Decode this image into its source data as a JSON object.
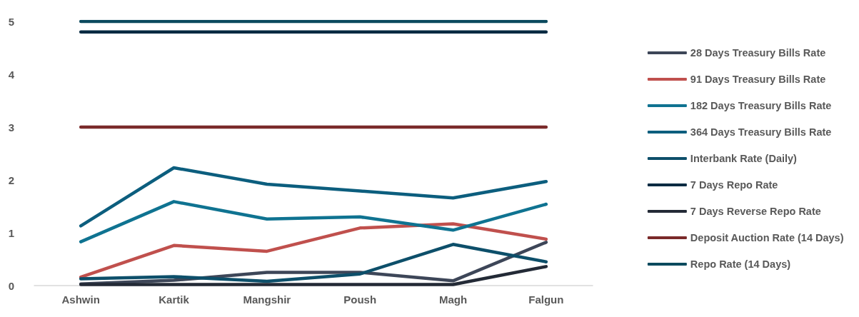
{
  "chart_data": {
    "type": "line",
    "categories": [
      "Ashwin",
      "Kartik",
      "Mangshir",
      "Poush",
      "Magh",
      "Falgun"
    ],
    "ylim": [
      0,
      5
    ],
    "yticks": [
      0,
      1,
      2,
      3,
      4,
      5
    ],
    "grid": false,
    "legend": "right",
    "marker": "none",
    "line_style": "solid",
    "series": [
      {
        "name": "28 Days Treasury Bills Rate",
        "color": "#3d4658",
        "values": [
          0.03,
          0.1,
          0.25,
          0.25,
          0.09,
          0.82
        ]
      },
      {
        "name": "91 Days Treasury Bills Rate",
        "color": "#c0504d",
        "values": [
          0.16,
          0.76,
          0.65,
          1.09,
          1.17,
          0.88
        ]
      },
      {
        "name": "182 Days Treasury Bills Rate",
        "color": "#0f7391",
        "values": [
          0.83,
          1.59,
          1.26,
          1.3,
          1.05,
          1.54
        ]
      },
      {
        "name": "364 Days Treasury Bills Rate",
        "color": "#0c5e7e",
        "values": [
          1.13,
          2.23,
          1.92,
          1.79,
          1.66,
          1.97
        ]
      },
      {
        "name": "Interbank Rate (Daily)",
        "color": "#0d4f6a",
        "values": [
          0.13,
          0.17,
          0.08,
          0.22,
          0.78,
          0.45
        ]
      },
      {
        "name": "7 Days Repo Rate",
        "color": "#062a42",
        "values": [
          4.8,
          4.8,
          4.8,
          4.8,
          4.8,
          4.8
        ]
      },
      {
        "name": "7 Days Reverse Repo Rate",
        "color": "#232a36",
        "values": [
          0.02,
          0.02,
          0.02,
          0.02,
          0.02,
          0.36
        ]
      },
      {
        "name": "Deposit Auction Rate (14 Days)",
        "color": "#7a2a2a",
        "values": [
          3,
          3,
          3,
          3,
          3,
          3
        ]
      },
      {
        "name": "Repo Rate (14 Days)",
        "color": "#0b4a5e",
        "values": [
          5,
          5,
          5,
          5,
          5,
          5
        ]
      }
    ]
  }
}
